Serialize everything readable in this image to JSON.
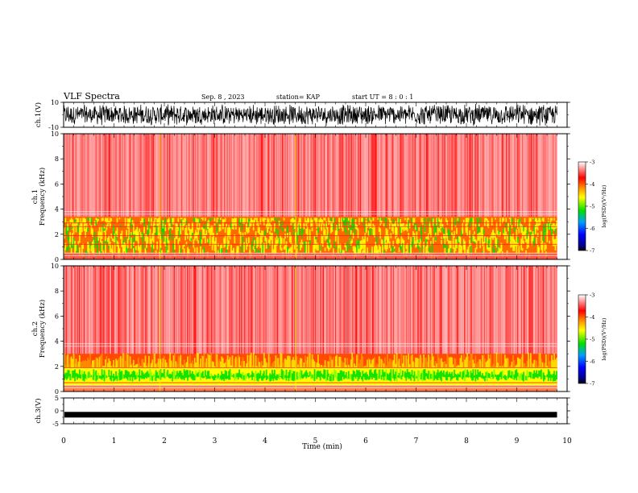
{
  "header": {
    "title": "VLF Spectra",
    "date": "Sep. 8 , 2023",
    "station": "station= KAP",
    "start": "start  UT =   8 : 0  : 1"
  },
  "colors": {
    "red": "#ff2020",
    "orange": "#ff9a00",
    "yellow": "#ffff00",
    "green": "#00e000",
    "blue": "#0000ff",
    "darkblue": "#000080"
  },
  "chart_data": [
    {
      "type": "line",
      "name": "ch1-waveform",
      "ylabel": "ch.1(V)",
      "ylim": [
        -10,
        10
      ],
      "yticks": [
        "10",
        "-10"
      ],
      "xlim": [
        0,
        10
      ],
      "description_value": "broadband noise amplitude approx ±8 V up to 9.8 min"
    },
    {
      "type": "heatmap",
      "name": "ch1-spectrogram",
      "ylabel": "ch.1\nFrequency (kHz)",
      "ylabel_lines": [
        "ch.1",
        "Frequency (kHz)"
      ],
      "ylim": [
        0,
        10
      ],
      "yticks": [
        "0",
        "2",
        "4",
        "6",
        "8",
        "10"
      ],
      "xlim": [
        0,
        10
      ],
      "data_end_min": 9.8,
      "bands": [
        {
          "from_khz": 0.0,
          "to_khz": 3.4,
          "level": "yellow-orange"
        },
        {
          "from_khz": 3.4,
          "to_khz": 10.0,
          "level": "red"
        }
      ],
      "colorbar": {
        "label": "log(PSD)(V²/Hz)",
        "ticks": [
          "-3",
          "-4",
          "-5",
          "-6",
          "-7"
        ],
        "range": [
          -7,
          -3
        ]
      }
    },
    {
      "type": "heatmap",
      "name": "ch2-spectrogram",
      "ylabel": "ch.2\nFrequency (kHz)",
      "ylabel_lines": [
        "ch.2",
        "Frequency (kHz)"
      ],
      "ylim": [
        0,
        10
      ],
      "yticks": [
        "0",
        "2",
        "4",
        "6",
        "8",
        "10"
      ],
      "xlim": [
        0,
        10
      ],
      "data_end_min": 9.8,
      "bands": [
        {
          "from_khz": 0.0,
          "to_khz": 1.9,
          "level": "green-yellow"
        },
        {
          "from_khz": 1.9,
          "to_khz": 3.0,
          "level": "orange"
        },
        {
          "from_khz": 3.0,
          "to_khz": 10.0,
          "level": "red"
        }
      ],
      "colorbar": {
        "label": "log(PSD)(V²/Hz)",
        "ticks": [
          "-3",
          "-4",
          "-5",
          "-6",
          "-7"
        ],
        "range": [
          -7,
          -3
        ]
      }
    },
    {
      "type": "line",
      "name": "ch3-waveform",
      "ylabel": "ch.3(V)",
      "ylim": [
        -5,
        5
      ],
      "yticks": [
        "5",
        "0",
        "-5"
      ],
      "xlim": [
        0,
        10
      ],
      "level_v": -1.5
    }
  ],
  "xaxis": {
    "label": "Time  (min)",
    "ticks": [
      "0",
      "1",
      "2",
      "3",
      "4",
      "5",
      "6",
      "7",
      "8",
      "9",
      "10"
    ]
  }
}
